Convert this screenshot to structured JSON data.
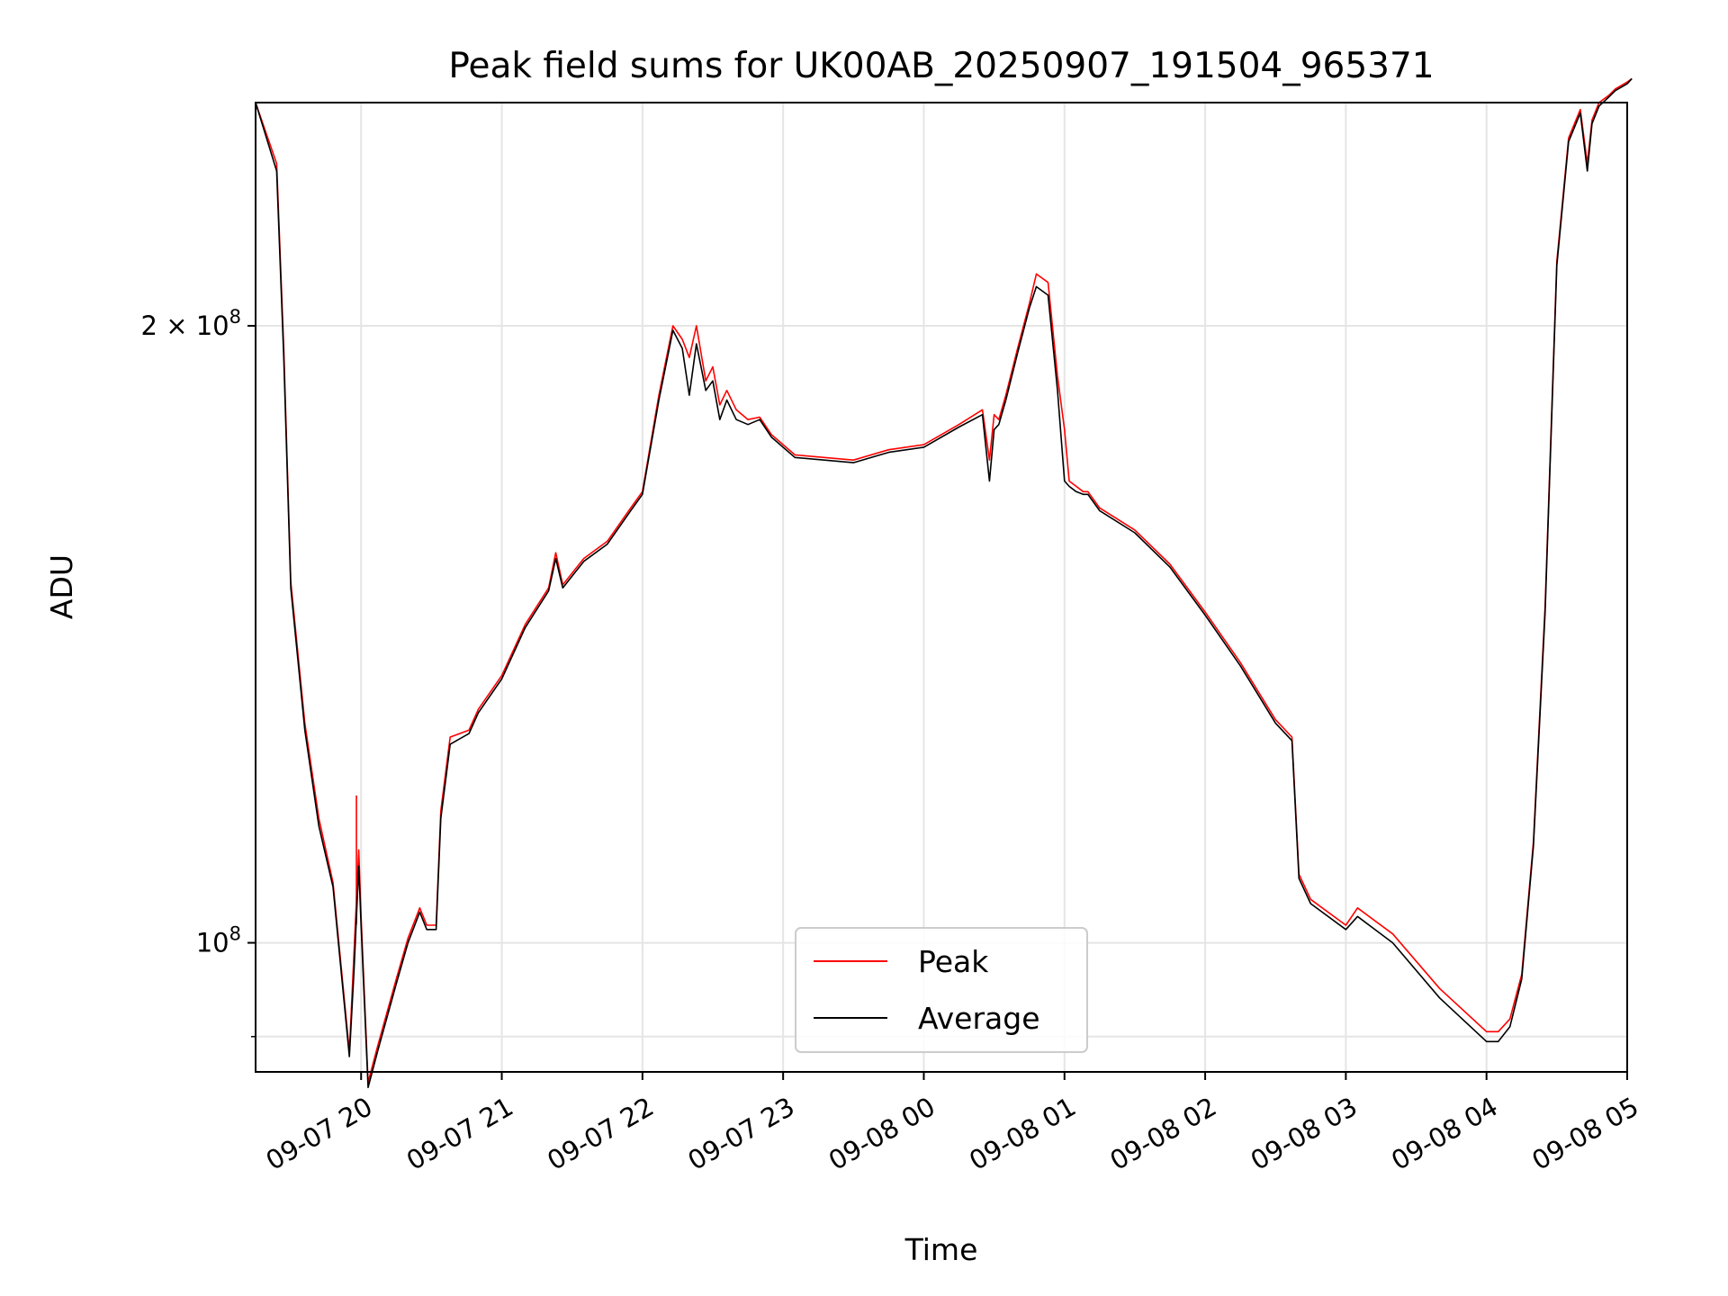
{
  "chart_data": {
    "type": "line",
    "title": "Peak field sums for UK00AB_20250907_191504_965371",
    "xlabel": "Time",
    "ylabel": "ADU",
    "y_scale": "log",
    "ylim": [
      86500000,
      257000000
    ],
    "xlim": [
      "2025-09-07 19:15",
      "2025-09-08 05:00"
    ],
    "x_ticks": [
      {
        "time": "2025-09-07 20:00",
        "label": "09-07 20"
      },
      {
        "time": "2025-09-07 21:00",
        "label": "09-07 21"
      },
      {
        "time": "2025-09-07 22:00",
        "label": "09-07 22"
      },
      {
        "time": "2025-09-07 23:00",
        "label": "09-07 23"
      },
      {
        "time": "2025-09-08 00:00",
        "label": "09-08 00"
      },
      {
        "time": "2025-09-08 01:00",
        "label": "09-08 01"
      },
      {
        "time": "2025-09-08 02:00",
        "label": "09-08 02"
      },
      {
        "time": "2025-09-08 03:00",
        "label": "09-08 03"
      },
      {
        "time": "2025-09-08 04:00",
        "label": "09-08 04"
      },
      {
        "time": "2025-09-08 05:00",
        "label": "09-08 05"
      }
    ],
    "y_ticks_major": [
      {
        "value": 100000000,
        "base": "10",
        "exponent": "8",
        "mantissa": ""
      },
      {
        "value": 200000000,
        "base": "10",
        "exponent": "8",
        "mantissa": "2"
      }
    ],
    "y_ticks_minor": [
      90000000
    ],
    "grid": true,
    "legend_position": "lower-center",
    "series": [
      {
        "name": "Peak",
        "color": "#ff0000",
        "x": [
          "2025-09-07 19:15",
          "2025-09-07 19:24",
          "2025-09-07 19:27",
          "2025-09-07 19:30",
          "2025-09-07 19:36",
          "2025-09-07 19:42",
          "2025-09-07 19:48",
          "2025-09-07 19:52",
          "2025-09-07 19:55",
          "2025-09-07 19:57",
          "2025-09-07 19:59",
          "2025-09-07 20:00",
          "2025-09-07 20:03",
          "2025-09-07 20:07",
          "2025-09-07 20:15",
          "2025-09-07 20:20",
          "2025-09-07 20:25",
          "2025-09-07 20:28",
          "2025-09-07 20:32",
          "2025-09-07 20:34",
          "2025-09-07 20:38",
          "2025-09-07 20:46",
          "2025-09-07 20:50",
          "2025-09-07 21:00",
          "2025-09-07 21:10",
          "2025-09-07 21:20",
          "2025-09-07 21:23",
          "2025-09-07 21:26",
          "2025-09-07 21:35",
          "2025-09-07 21:45",
          "2025-09-07 21:55",
          "2025-09-07 22:00",
          "2025-09-07 22:07",
          "2025-09-07 22:13",
          "2025-09-07 22:17",
          "2025-09-07 22:20",
          "2025-09-07 22:23",
          "2025-09-07 22:27",
          "2025-09-07 22:30",
          "2025-09-07 22:33",
          "2025-09-07 22:36",
          "2025-09-07 22:40",
          "2025-09-07 22:45",
          "2025-09-07 22:50",
          "2025-09-07 22:55",
          "2025-09-07 23:05",
          "2025-09-07 23:30",
          "2025-09-07 23:45",
          "2025-09-08 00:00",
          "2025-09-08 00:15",
          "2025-09-08 00:25",
          "2025-09-08 00:28",
          "2025-09-08 00:30",
          "2025-09-08 00:32",
          "2025-09-08 00:35",
          "2025-09-08 00:40",
          "2025-09-08 00:45",
          "2025-09-08 00:48",
          "2025-09-08 00:53",
          "2025-09-08 00:57",
          "2025-09-08 01:00",
          "2025-09-08 01:02",
          "2025-09-08 01:05",
          "2025-09-08 01:08",
          "2025-09-08 01:10",
          "2025-09-08 01:15",
          "2025-09-08 01:30",
          "2025-09-08 01:45",
          "2025-09-08 02:00",
          "2025-09-08 02:15",
          "2025-09-08 02:30",
          "2025-09-08 02:37",
          "2025-09-08 02:40",
          "2025-09-08 02:45",
          "2025-09-08 03:00",
          "2025-09-08 03:05",
          "2025-09-08 03:20",
          "2025-09-08 03:40",
          "2025-09-08 04:00",
          "2025-09-08 04:05",
          "2025-09-08 04:10",
          "2025-09-08 04:15",
          "2025-09-08 04:20",
          "2025-09-08 04:25",
          "2025-09-08 04:30",
          "2025-09-08 04:35",
          "2025-09-08 04:40",
          "2025-09-08 04:43",
          "2025-09-08 04:45",
          "2025-09-08 04:48",
          "2025-09-08 04:52",
          "2025-09-08 04:55",
          "2025-09-08 05:00",
          "2025-09-08 05:02"
        ],
        "values": [
          257000000,
          240000000,
          195000000,
          150000000,
          128000000,
          115000000,
          107000000,
          96000000,
          88500000,
          99000000,
          111000000,
          103000000,
          85500000,
          89000000,
          96000000,
          100500000,
          104000000,
          102000000,
          102000000,
          116000000,
          126000000,
          127000000,
          130000000,
          135000000,
          143000000,
          149000000,
          155000000,
          149500000,
          154000000,
          157000000,
          163000000,
          166000000,
          185000000,
          200000000,
          197000000,
          193000000,
          200000000,
          188000000,
          191000000,
          183000000,
          186000000,
          182000000,
          180000000,
          180500000,
          177000000,
          173000000,
          172000000,
          174000000,
          175000000,
          179000000,
          182000000,
          172000000,
          181000000,
          180000000,
          185000000,
          195000000,
          205000000,
          212000000,
          210000000,
          189000000,
          178000000,
          168000000,
          167000000,
          166000000,
          166000000,
          163000000,
          159000000,
          153000000,
          145000000,
          137000000,
          128500000,
          126000000,
          108000000,
          105000000,
          102000000,
          104000000,
          101000000,
          95000000,
          90500000,
          90500000,
          91800000,
          96500000,
          112000000,
          146000000,
          215000000,
          247000000,
          255000000,
          240000000,
          252000000,
          257000000,
          259000000,
          261000000,
          263000000,
          264000000
        ],
        "spikes": [
          {
            "x": "2025-09-07 19:58",
            "y": 118000000
          }
        ]
      },
      {
        "name": "Average",
        "color": "#000000",
        "x": [
          "2025-09-07 19:15",
          "2025-09-07 19:24",
          "2025-09-07 19:27",
          "2025-09-07 19:30",
          "2025-09-07 19:36",
          "2025-09-07 19:42",
          "2025-09-07 19:48",
          "2025-09-07 19:52",
          "2025-09-07 19:55",
          "2025-09-07 19:57",
          "2025-09-07 19:59",
          "2025-09-07 20:00",
          "2025-09-07 20:03",
          "2025-09-07 20:07",
          "2025-09-07 20:15",
          "2025-09-07 20:20",
          "2025-09-07 20:25",
          "2025-09-07 20:28",
          "2025-09-07 20:32",
          "2025-09-07 20:34",
          "2025-09-07 20:38",
          "2025-09-07 20:46",
          "2025-09-07 20:50",
          "2025-09-07 21:00",
          "2025-09-07 21:10",
          "2025-09-07 21:20",
          "2025-09-07 21:23",
          "2025-09-07 21:26",
          "2025-09-07 21:35",
          "2025-09-07 21:45",
          "2025-09-07 21:55",
          "2025-09-07 22:00",
          "2025-09-07 22:07",
          "2025-09-07 22:13",
          "2025-09-07 22:17",
          "2025-09-07 22:20",
          "2025-09-07 22:23",
          "2025-09-07 22:27",
          "2025-09-07 22:30",
          "2025-09-07 22:33",
          "2025-09-07 22:36",
          "2025-09-07 22:40",
          "2025-09-07 22:45",
          "2025-09-07 22:50",
          "2025-09-07 22:55",
          "2025-09-07 23:05",
          "2025-09-07 23:30",
          "2025-09-07 23:45",
          "2025-09-08 00:00",
          "2025-09-08 00:15",
          "2025-09-08 00:25",
          "2025-09-08 00:28",
          "2025-09-08 00:30",
          "2025-09-08 00:32",
          "2025-09-08 00:35",
          "2025-09-08 00:40",
          "2025-09-08 00:45",
          "2025-09-08 00:48",
          "2025-09-08 00:53",
          "2025-09-08 00:57",
          "2025-09-08 01:00",
          "2025-09-08 01:02",
          "2025-09-08 01:05",
          "2025-09-08 01:08",
          "2025-09-08 01:10",
          "2025-09-08 01:15",
          "2025-09-08 01:30",
          "2025-09-08 01:45",
          "2025-09-08 02:00",
          "2025-09-08 02:15",
          "2025-09-08 02:30",
          "2025-09-08 02:37",
          "2025-09-08 02:40",
          "2025-09-08 02:45",
          "2025-09-08 03:00",
          "2025-09-08 03:05",
          "2025-09-08 03:20",
          "2025-09-08 03:40",
          "2025-09-08 04:00",
          "2025-09-08 04:05",
          "2025-09-08 04:10",
          "2025-09-08 04:15",
          "2025-09-08 04:20",
          "2025-09-08 04:25",
          "2025-09-08 04:30",
          "2025-09-08 04:35",
          "2025-09-08 04:40",
          "2025-09-08 04:43",
          "2025-09-08 04:45",
          "2025-09-08 04:48",
          "2025-09-08 04:52",
          "2025-09-08 04:55",
          "2025-09-08 05:00",
          "2025-09-08 05:02"
        ],
        "values": [
          257000000,
          238000000,
          193000000,
          149000000,
          127000000,
          114000000,
          106500000,
          95500000,
          88000000,
          97000000,
          109000000,
          102000000,
          85000000,
          88500000,
          95500000,
          100000000,
          103500000,
          101500000,
          101500000,
          115000000,
          125000000,
          126500000,
          129500000,
          134500000,
          142500000,
          148500000,
          154000000,
          149000000,
          153500000,
          156500000,
          162500000,
          165500000,
          184000000,
          199000000,
          195000000,
          185000000,
          196000000,
          186000000,
          188000000,
          180000000,
          184000000,
          180000000,
          179000000,
          180000000,
          176500000,
          172500000,
          171500000,
          173500000,
          174500000,
          178500000,
          181000000,
          168000000,
          178000000,
          179000000,
          184000000,
          194000000,
          204000000,
          209000000,
          207000000,
          186000000,
          168000000,
          167000000,
          166000000,
          165500000,
          165500000,
          162500000,
          158500000,
          152500000,
          144500000,
          136500000,
          128000000,
          125500000,
          107500000,
          104500000,
          101500000,
          103000000,
          100000000,
          94000000,
          89500000,
          89500000,
          91000000,
          96000000,
          111500000,
          145000000,
          214000000,
          246000000,
          254000000,
          238000000,
          251000000,
          256000000,
          258500000,
          260500000,
          262500000,
          264000000
        ],
        "spikes": []
      }
    ]
  }
}
